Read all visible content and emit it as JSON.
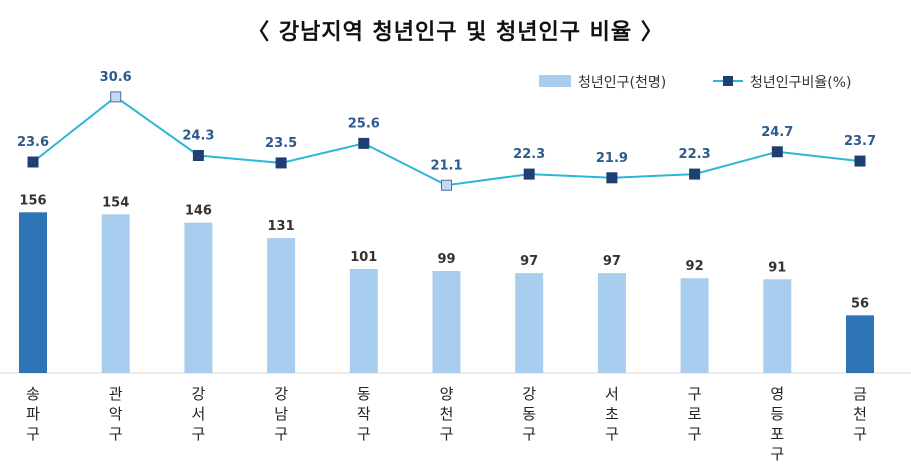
{
  "chart_data": {
    "type": "bar+line",
    "title": "〈 강남지역 청년인구 및 청년인구 비율 〉",
    "categories": [
      "송파구",
      "관악구",
      "강서구",
      "강남구",
      "동작구",
      "양천구",
      "강동구",
      "서초구",
      "구로구",
      "영등포구",
      "금천구"
    ],
    "series": [
      {
        "name": "청년인구(천명)",
        "type": "bar",
        "values": [
          156,
          154,
          146,
          131,
          101,
          99,
          97,
          97,
          92,
          91,
          56
        ],
        "value_labels": [
          "156",
          "154",
          "146",
          "131",
          "101",
          "99",
          "97",
          "97",
          "92",
          "91",
          "56"
        ],
        "highlight": [
          0,
          10
        ]
      },
      {
        "name": "청년인구비율(%)",
        "type": "line",
        "values": [
          23.6,
          30.6,
          24.3,
          23.5,
          25.6,
          21.1,
          22.3,
          21.9,
          22.3,
          24.7,
          23.7
        ],
        "value_labels": [
          "23.6",
          "30.6",
          "24.3",
          "23.5",
          "25.6",
          "21.1",
          "22.3",
          "21.9",
          "22.3",
          "24.7",
          "23.7"
        ],
        "highlight": [
          1,
          5
        ]
      }
    ],
    "legend": [
      "청년인구(천명)",
      "청년인구비율(%)"
    ],
    "legend_position": "top-right",
    "colors": {
      "bar": "#a9cdef",
      "bar_highlight": "#2e75b6",
      "line": "#2eb6d8",
      "marker": "#1f3f73",
      "marker_highlight": "#c5d9f1"
    }
  }
}
